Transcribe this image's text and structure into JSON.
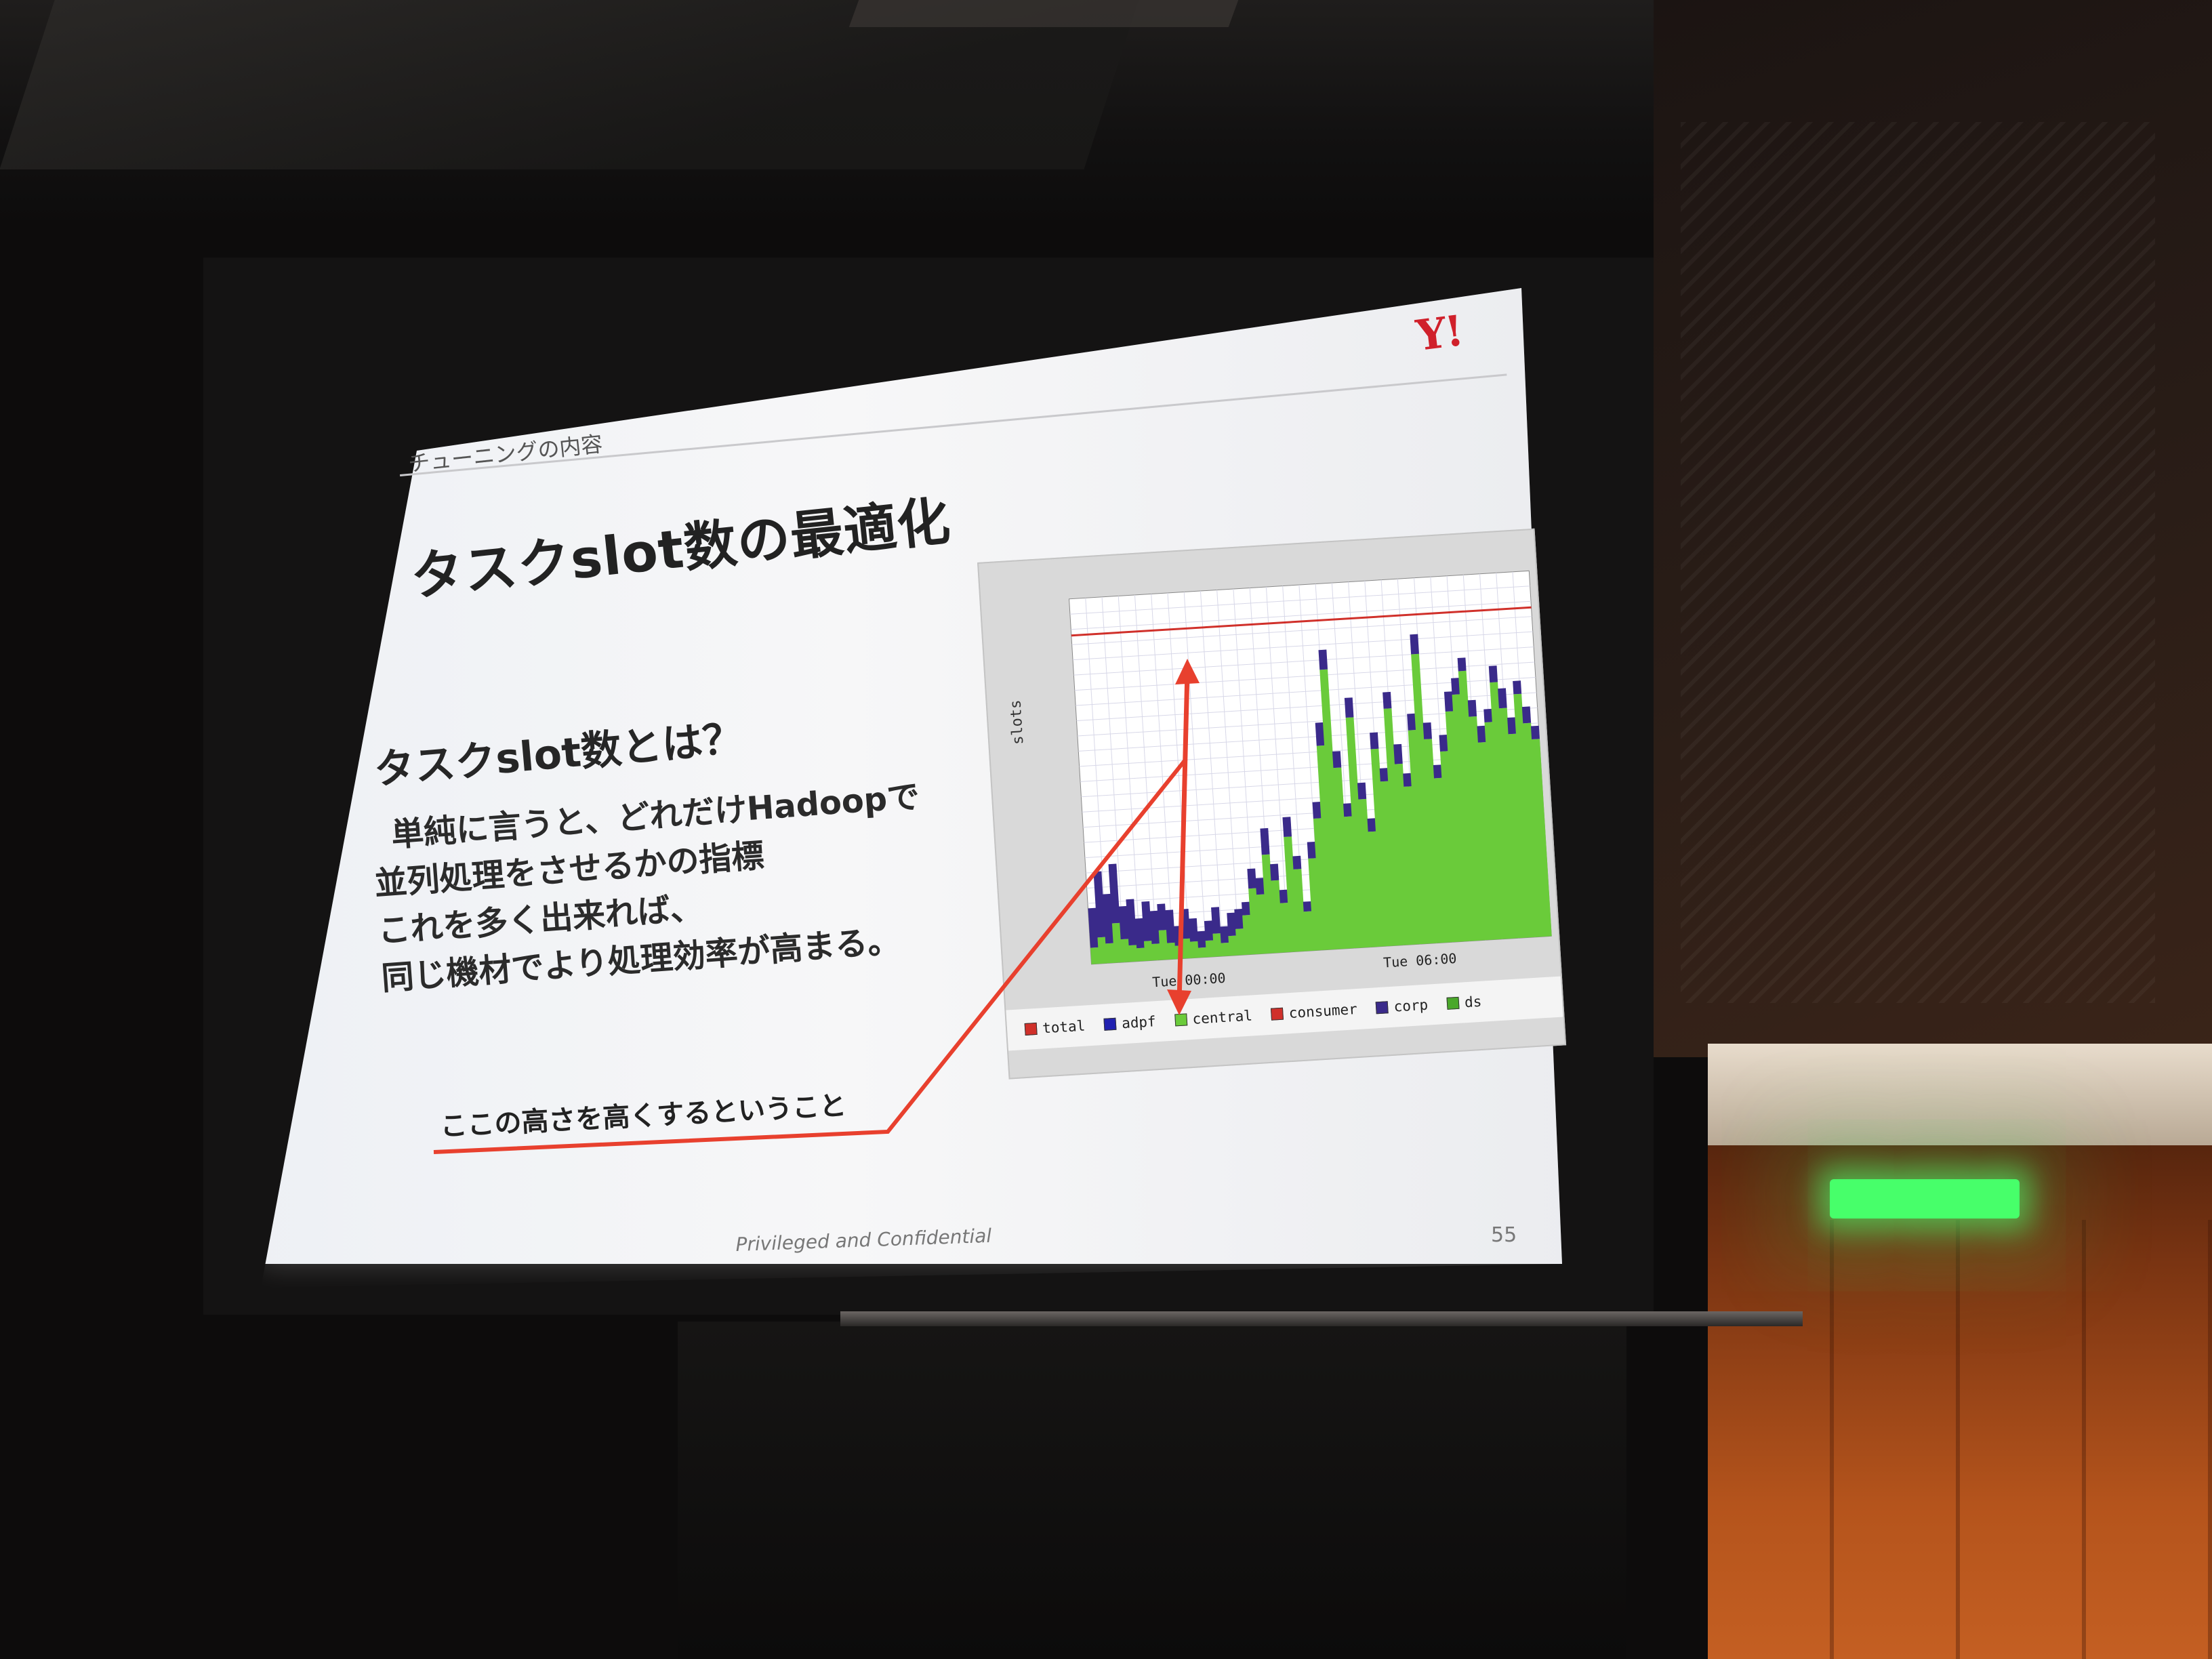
{
  "slide": {
    "logo": "Y!",
    "breadcrumb": "チューニングの内容",
    "title": "タスクslot数の最適化",
    "subtitle": "タスクslot数とは？",
    "body_lines": [
      "単純に言うと、どれだけHadoopで",
      "並列処理をさせるかの指標",
      "これを多く出来れば、",
      "同じ機材でより処理効率が高まる。"
    ],
    "annotation": "ここの高さを高くするということ",
    "footer": "Privileged and Confidential",
    "page_number": "55",
    "accent_color": "#e0392b"
  },
  "chart_data": {
    "type": "area",
    "ylabel": "slots",
    "x_ticks": [
      "Tue 00:00",
      "Tue 06:00"
    ],
    "legend": [
      {
        "name": "total",
        "color": "#d0302a"
      },
      {
        "name": "adpf",
        "color": "#2020b0"
      },
      {
        "name": "central",
        "color": "#6acb3a"
      },
      {
        "name": "consumer",
        "color": "#d0302a"
      },
      {
        "name": "corp",
        "color": "#3a2a8a"
      },
      {
        "name": "ds",
        "color": "#4aa82a"
      }
    ],
    "total_capacity_line": 1.0,
    "series": [
      {
        "name": "central",
        "values": [
          0.05,
          0.08,
          0.06,
          0.12,
          0.07,
          0.05,
          0.04,
          0.06,
          0.05,
          0.09,
          0.05,
          0.04,
          0.06,
          0.05,
          0.03,
          0.05,
          0.07,
          0.04,
          0.06,
          0.08,
          0.12,
          0.2,
          0.18,
          0.3,
          0.22,
          0.15,
          0.35,
          0.25,
          0.12,
          0.28,
          0.4,
          0.62,
          0.85,
          0.55,
          0.4,
          0.7,
          0.45,
          0.35,
          0.6,
          0.5,
          0.72,
          0.55,
          0.48,
          0.65,
          0.88,
          0.62,
          0.5,
          0.58,
          0.7,
          0.75,
          0.82,
          0.68,
          0.6,
          0.66,
          0.78,
          0.7,
          0.62,
          0.74,
          0.65,
          0.6
        ]
      },
      {
        "name": "corp",
        "values": [
          0.12,
          0.2,
          0.15,
          0.18,
          0.1,
          0.14,
          0.09,
          0.12,
          0.1,
          0.08,
          0.1,
          0.06,
          0.09,
          0.07,
          0.05,
          0.06,
          0.08,
          0.05,
          0.07,
          0.06,
          0.04,
          0.06,
          0.05,
          0.08,
          0.05,
          0.04,
          0.06,
          0.04,
          0.03,
          0.05,
          0.05,
          0.07,
          0.06,
          0.05,
          0.04,
          0.06,
          0.05,
          0.04,
          0.05,
          0.04,
          0.05,
          0.06,
          0.04,
          0.05,
          0.06,
          0.05,
          0.04,
          0.05,
          0.06,
          0.05,
          0.04,
          0.05,
          0.05,
          0.04,
          0.05,
          0.06,
          0.05,
          0.04,
          0.05,
          0.04
        ]
      }
    ]
  }
}
